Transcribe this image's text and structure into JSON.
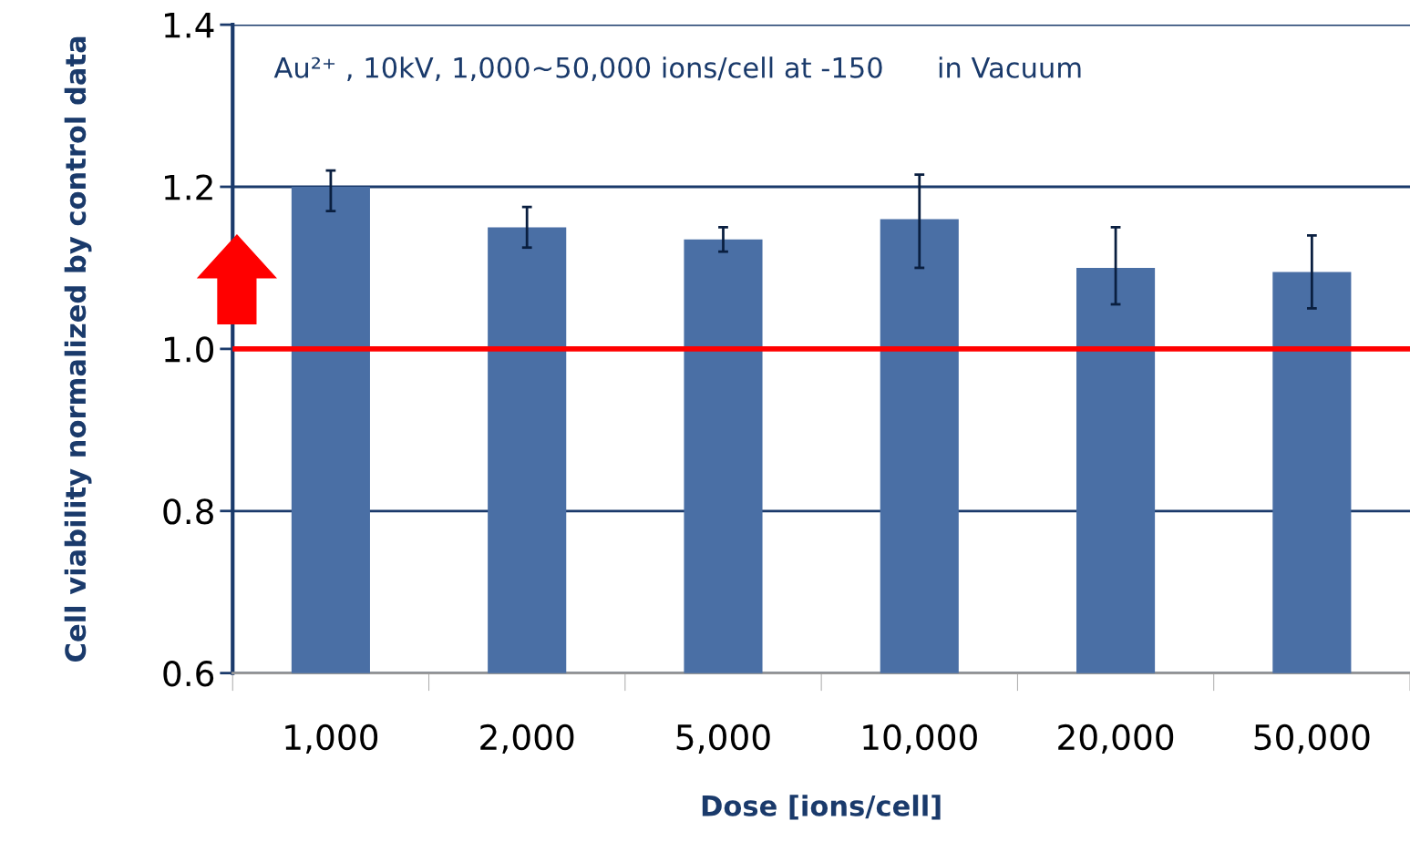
{
  "chart_data": {
    "type": "bar",
    "title": "Au²⁺ , 10kV, 1,000~50,000 ions/cell at -150      in Vacuum",
    "xlabel": "Dose [ions/cell]",
    "ylabel": "Cell viability normalized by control data",
    "categories": [
      "1,000",
      "2,000",
      "5,000",
      "10,000",
      "20,000",
      "50,000"
    ],
    "values": [
      1.2,
      1.15,
      1.135,
      1.16,
      1.1,
      1.095
    ],
    "errors": [
      [
        1.17,
        1.22
      ],
      [
        1.125,
        1.175
      ],
      [
        1.12,
        1.15
      ],
      [
        1.1,
        1.215
      ],
      [
        1.055,
        1.15
      ],
      [
        1.05,
        1.14
      ]
    ],
    "color": "#4a6fa5",
    "ylim": [
      0.6,
      1.4
    ],
    "yticks": [
      {
        "value": 0.6,
        "label": "0.6"
      },
      {
        "value": 0.8,
        "label": "0.8"
      },
      {
        "value": 1.0,
        "label": "1.0"
      },
      {
        "value": 1.2,
        "label": "1.2"
      },
      {
        "value": 1.4,
        "label": "1.4"
      }
    ],
    "ref_lines": [
      {
        "axis": "y",
        "value": 1.0,
        "color": "#ff0000"
      }
    ],
    "grid": "y"
  }
}
